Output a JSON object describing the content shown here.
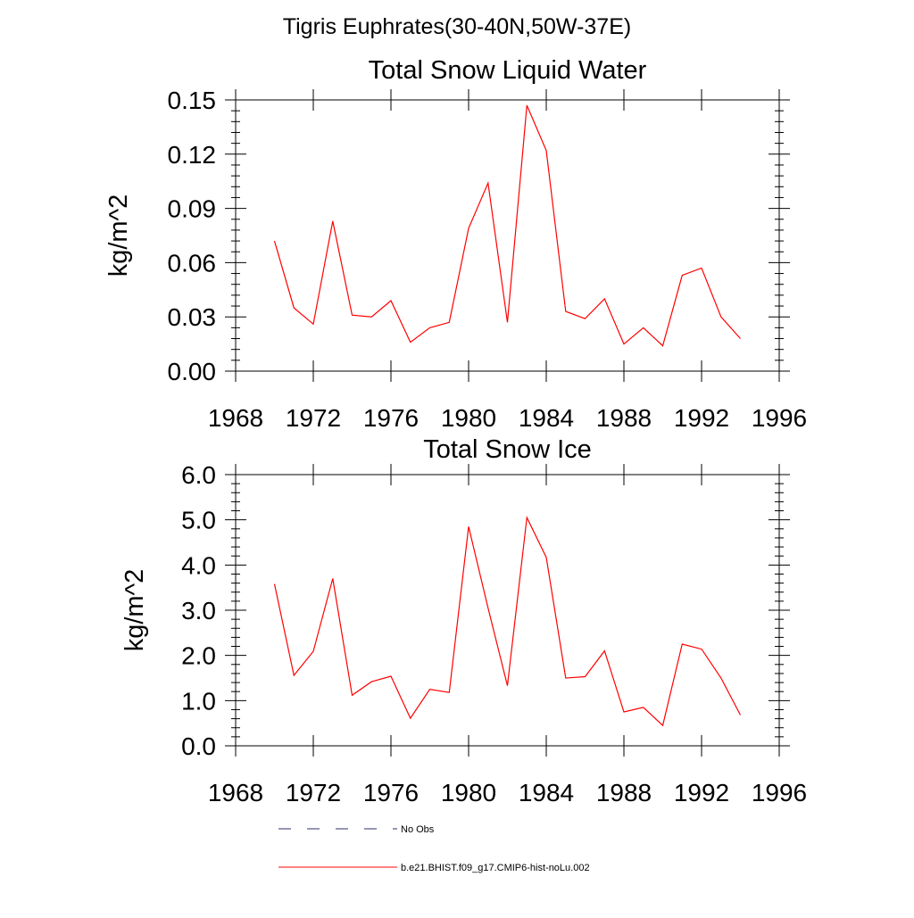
{
  "figure": {
    "title": "Tigris Euphrates(30-40N,50W-37E)"
  },
  "legend": {
    "entries": [
      {
        "label": "No Obs",
        "style": "dashed",
        "color": "#2b2f6b"
      },
      {
        "label": "b.e21.BHIST.f09_g17.CMIP6-hist-noLu.002",
        "style": "solid",
        "color": "#ff0000"
      }
    ]
  },
  "chart_data": [
    {
      "type": "line",
      "title": "Total Snow Liquid Water",
      "xlabel": "",
      "ylabel": "kg/m^2",
      "xlim": [
        1968,
        1996
      ],
      "ylim": [
        0,
        0.15
      ],
      "x_ticks": [
        1968,
        1972,
        1976,
        1980,
        1984,
        1988,
        1992,
        1996
      ],
      "x_tick_labels": [
        "1968",
        "1972",
        "1976",
        "1980",
        "1984",
        "1988",
        "1992",
        "1996"
      ],
      "y_ticks": [
        0,
        0.03,
        0.06,
        0.09,
        0.12,
        0.15
      ],
      "y_tick_labels": [
        "0.00",
        "0.03",
        "0.06",
        "0.09",
        "0.12",
        "0.15"
      ],
      "grid": false,
      "series": [
        {
          "name": "b.e21.BHIST.f09_g17.CMIP6-hist-noLu.002",
          "color": "#ff0000",
          "x": [
            1970,
            1971,
            1972,
            1973,
            1974,
            1975,
            1976,
            1977,
            1978,
            1979,
            1980,
            1981,
            1982,
            1983,
            1984,
            1985,
            1986,
            1987,
            1988,
            1989,
            1990,
            1991,
            1992,
            1993,
            1994
          ],
          "y": [
            0.072,
            0.035,
            0.026,
            0.083,
            0.031,
            0.03,
            0.039,
            0.016,
            0.024,
            0.027,
            0.079,
            0.104,
            0.027,
            0.147,
            0.122,
            0.033,
            0.029,
            0.04,
            0.015,
            0.024,
            0.014,
            0.053,
            0.057,
            0.03,
            0.018
          ]
        }
      ]
    },
    {
      "type": "line",
      "title": "Total Snow Ice",
      "xlabel": "",
      "ylabel": "kg/m^2",
      "xlim": [
        1968,
        1996
      ],
      "ylim": [
        0,
        6
      ],
      "x_ticks": [
        1968,
        1972,
        1976,
        1980,
        1984,
        1988,
        1992,
        1996
      ],
      "x_tick_labels": [
        "1968",
        "1972",
        "1976",
        "1980",
        "1984",
        "1988",
        "1992",
        "1996"
      ],
      "y_ticks": [
        0,
        1,
        2,
        3,
        4,
        5,
        6
      ],
      "y_tick_labels": [
        "0.0",
        "1.0",
        "2.0",
        "3.0",
        "4.0",
        "5.0",
        "6.0"
      ],
      "grid": false,
      "series": [
        {
          "name": "b.e21.BHIST.f09_g17.CMIP6-hist-noLu.002",
          "color": "#ff0000",
          "x": [
            1970,
            1971,
            1972,
            1973,
            1974,
            1975,
            1976,
            1977,
            1978,
            1979,
            1980,
            1981,
            1982,
            1983,
            1984,
            1985,
            1986,
            1987,
            1988,
            1989,
            1990,
            1991,
            1992,
            1993,
            1994
          ],
          "y": [
            3.58,
            1.56,
            2.09,
            3.7,
            1.12,
            1.42,
            1.54,
            0.61,
            1.25,
            1.18,
            4.85,
            3.05,
            1.33,
            5.05,
            4.17,
            1.5,
            1.53,
            2.1,
            0.75,
            0.85,
            0.45,
            2.25,
            2.14,
            1.5,
            0.68
          ]
        }
      ]
    }
  ]
}
